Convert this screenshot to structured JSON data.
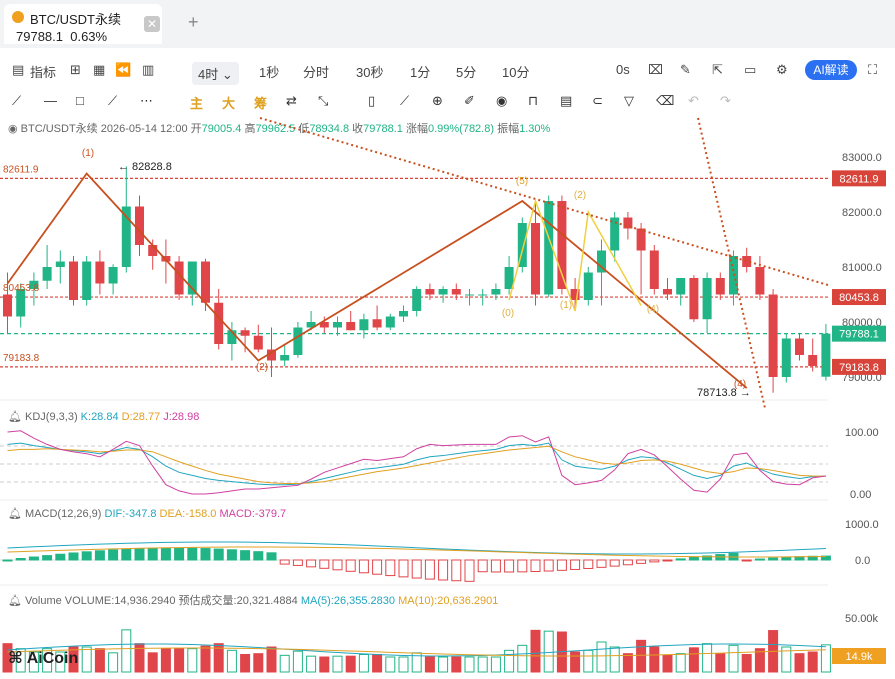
{
  "tab": {
    "title": "BTC/USDT永续",
    "price": "79788.1",
    "change": "0.63%",
    "close_icon": "close-icon",
    "add_icon": "plus-icon"
  },
  "toolbar": {
    "indicators_label": "指标",
    "interval_selected": "4时",
    "intervals": [
      "1秒",
      "分时",
      "30秒",
      "1分",
      "5分",
      "10分"
    ],
    "countdown": "0s",
    "ai_label": "AI解读",
    "icons": [
      "indicator-icon",
      "layout-icon",
      "replay-icon",
      "chart-type-icon",
      "camera-icon",
      "pen-icon",
      "popout-icon",
      "screen-icon",
      "settings-icon",
      "fullscreen-icon"
    ]
  },
  "draw_tools": {
    "labels": [
      "主",
      "大",
      "筹"
    ],
    "icons": [
      "line-icon",
      "hline-icon",
      "rect-icon",
      "brush-icon",
      "more-icon",
      "trade-icon",
      "measure-icon",
      "ruler-icon",
      "zoom-icon",
      "marker-icon",
      "visibility-icon",
      "lock-icon",
      "note-icon",
      "magnet-icon",
      "filter-icon",
      "trash-icon",
      "undo-icon",
      "redo-icon"
    ]
  },
  "info_bar": {
    "symbol": "BTC/USDT永续",
    "datetime": "2026-05-14 12:00",
    "open_label": "开",
    "open": "79005.4",
    "high_label": "高",
    "high": "79962.5",
    "low_label": "低",
    "low": "78934.8",
    "close_label": "收",
    "close": "79788.1",
    "chg_label": "涨幅",
    "chg": "0.99%(782.8)",
    "amp_label": "振幅",
    "amp": "1.30%"
  },
  "kdj": {
    "name": "KDJ(9,3,3)",
    "k": "K:28.84",
    "d": "D:28.77",
    "j": "J:28.98",
    "axis": [
      "100.00",
      "0.00"
    ]
  },
  "macd": {
    "name": "MACD(12,26,9)",
    "dif": "DIF:-347.8",
    "dea": "DEA:-158.0",
    "macd": "MACD:-379.7",
    "axis": [
      "1000.0",
      "0.0"
    ]
  },
  "volume": {
    "name": "Volume",
    "vol": "VOLUME:14,936.2940",
    "est": "预估成交量:20,321.4884",
    "ma5": "MA(5):26,355.2830",
    "ma10": "MA(10):20,636.2901",
    "axis": [
      "50.00k"
    ],
    "last": "14.9k"
  },
  "brand": "AiCoin",
  "chart_data": {
    "type": "candlestick",
    "y_ticks": [
      83000,
      82000,
      81000,
      80000,
      79000
    ],
    "y_tick_labels": [
      "83000.0",
      "82000.0",
      "81000.0",
      "80000.0",
      "79000.0"
    ],
    "price_tags": [
      {
        "label": "82611.9",
        "value": 82611.9,
        "color": "#d9443a"
      },
      {
        "label": "80453.8",
        "value": 80453.8,
        "color": "#d9443a"
      },
      {
        "label": "79788.1",
        "value": 79788.1,
        "color": "#20b486"
      },
      {
        "label": "79183.8",
        "value": 79183.8,
        "color": "#d9443a"
      }
    ],
    "left_labels": [
      "82611.9",
      "80453.8",
      "79183.8"
    ],
    "annotations": {
      "high": "← 82828.8",
      "low": "78713.8 →",
      "waves": [
        "(1)",
        "(2)",
        "(3)",
        "(4)",
        "(5)",
        "(0)",
        "(1)",
        "(2)",
        "(3)",
        "(4)"
      ]
    },
    "candles": [
      [
        80500,
        80900,
        79800,
        80100
      ],
      [
        80100,
        80700,
        79900,
        80600
      ],
      [
        80600,
        80900,
        80300,
        80750
      ],
      [
        80750,
        81400,
        80600,
        81000
      ],
      [
        81000,
        81300,
        80700,
        81100
      ],
      [
        81100,
        81200,
        80300,
        80400
      ],
      [
        80400,
        81200,
        80300,
        81100
      ],
      [
        81100,
        81300,
        80500,
        80700
      ],
      [
        80700,
        81050,
        80500,
        81000
      ],
      [
        81000,
        82828.7,
        80900,
        82100
      ],
      [
        82100,
        82300,
        81200,
        81400
      ],
      [
        81400,
        81500,
        80950,
        81200
      ],
      [
        81200,
        81500,
        80700,
        81100
      ],
      [
        81100,
        81200,
        80400,
        80500
      ],
      [
        80500,
        81100,
        80300,
        81100
      ],
      [
        81100,
        81150,
        80200,
        80350
      ],
      [
        80350,
        80600,
        79500,
        79600
      ],
      [
        79600,
        80000,
        79300,
        79850
      ],
      [
        79850,
        79900,
        79450,
        79750
      ],
      [
        79750,
        79950,
        79450,
        79500
      ],
      [
        79500,
        79900,
        79000,
        79300
      ],
      [
        79300,
        79600,
        79200,
        79400
      ],
      [
        79400,
        80000,
        79350,
        79900
      ],
      [
        79900,
        80200,
        79850,
        80000
      ],
      [
        80000,
        80100,
        79800,
        79900
      ],
      [
        79900,
        80100,
        79750,
        80000
      ],
      [
        80000,
        80200,
        79850,
        79850
      ],
      [
        79850,
        80150,
        79700,
        80050
      ],
      [
        80050,
        80300,
        79850,
        79900
      ],
      [
        79900,
        80150,
        79850,
        80100
      ],
      [
        80100,
        80300,
        80000,
        80200
      ],
      [
        80200,
        80650,
        80100,
        80600
      ],
      [
        80600,
        80700,
        80400,
        80500
      ],
      [
        80500,
        80650,
        80350,
        80600
      ],
      [
        80600,
        80700,
        80400,
        80500
      ],
      [
        80500,
        80600,
        80300,
        80500
      ],
      [
        80500,
        80600,
        80300,
        80500
      ],
      [
        80500,
        80700,
        80400,
        80600
      ],
      [
        80600,
        81200,
        80500,
        81000
      ],
      [
        81000,
        81900,
        80900,
        81800
      ],
      [
        81800,
        82200,
        80300,
        80500
      ],
      [
        80500,
        82300,
        80450,
        82200
      ],
      [
        82200,
        82300,
        80500,
        80600
      ],
      [
        80600,
        80800,
        80200,
        80400
      ],
      [
        80400,
        81000,
        80300,
        80900
      ],
      [
        80900,
        81500,
        80300,
        81300
      ],
      [
        81300,
        82000,
        81100,
        81900
      ],
      [
        81900,
        82000,
        81500,
        81700
      ],
      [
        81700,
        81800,
        80500,
        81300
      ],
      [
        81300,
        81400,
        80500,
        80600
      ],
      [
        80600,
        80800,
        80400,
        80500
      ],
      [
        80500,
        80800,
        80300,
        80800
      ],
      [
        80800,
        80850,
        80000,
        80050
      ],
      [
        80050,
        80900,
        79800,
        80800
      ],
      [
        80800,
        80900,
        80400,
        80500
      ],
      [
        80500,
        81300,
        80300,
        81200
      ],
      [
        81200,
        81350,
        80900,
        81000
      ],
      [
        81000,
        81200,
        80400,
        80500
      ],
      [
        80500,
        80600,
        78713.8,
        79000
      ],
      [
        79000,
        79800,
        78900,
        79700
      ],
      [
        79700,
        79800,
        79300,
        79400
      ],
      [
        79400,
        79700,
        79100,
        79200
      ],
      [
        79005.4,
        79962.5,
        78934.8,
        79788.1
      ]
    ],
    "kdj_k": [
      80,
      82,
      78,
      75,
      72,
      70,
      68,
      65,
      70,
      75,
      72,
      60,
      45,
      35,
      30,
      25,
      22,
      20,
      18,
      16,
      15,
      15,
      16,
      20,
      25,
      30,
      35,
      40,
      42,
      45,
      48,
      55,
      60,
      62,
      65,
      68,
      70,
      72,
      78,
      80,
      78,
      82,
      55,
      45,
      42,
      40,
      45,
      55,
      60,
      58,
      50,
      40,
      30,
      25,
      30,
      45,
      50,
      40,
      32,
      28,
      25,
      28,
      29
    ],
    "kdj_d": [
      70,
      72,
      72,
      73,
      72,
      71,
      70,
      68,
      69,
      71,
      71,
      68,
      60,
      52,
      45,
      38,
      32,
      28,
      24,
      20,
      18,
      17,
      17,
      18,
      20,
      24,
      28,
      32,
      36,
      39,
      42,
      46,
      50,
      54,
      58,
      62,
      65,
      68,
      71,
      73,
      75,
      77,
      68,
      60,
      55,
      50,
      48,
      50,
      54,
      55,
      53,
      48,
      42,
      36,
      33,
      36,
      42,
      41,
      38,
      34,
      30,
      29,
      28.8
    ],
    "kdj_j": [
      100,
      102,
      90,
      80,
      72,
      68,
      65,
      60,
      72,
      85,
      78,
      45,
      15,
      5,
      0,
      0,
      2,
      5,
      8,
      8,
      10,
      12,
      14,
      24,
      35,
      42,
      49,
      56,
      54,
      57,
      60,
      73,
      80,
      78,
      79,
      80,
      80,
      80,
      92,
      94,
      84,
      92,
      30,
      15,
      18,
      22,
      39,
      65,
      72,
      63,
      44,
      24,
      6,
      3,
      24,
      63,
      66,
      38,
      20,
      16,
      15,
      26,
      29
    ]
  }
}
